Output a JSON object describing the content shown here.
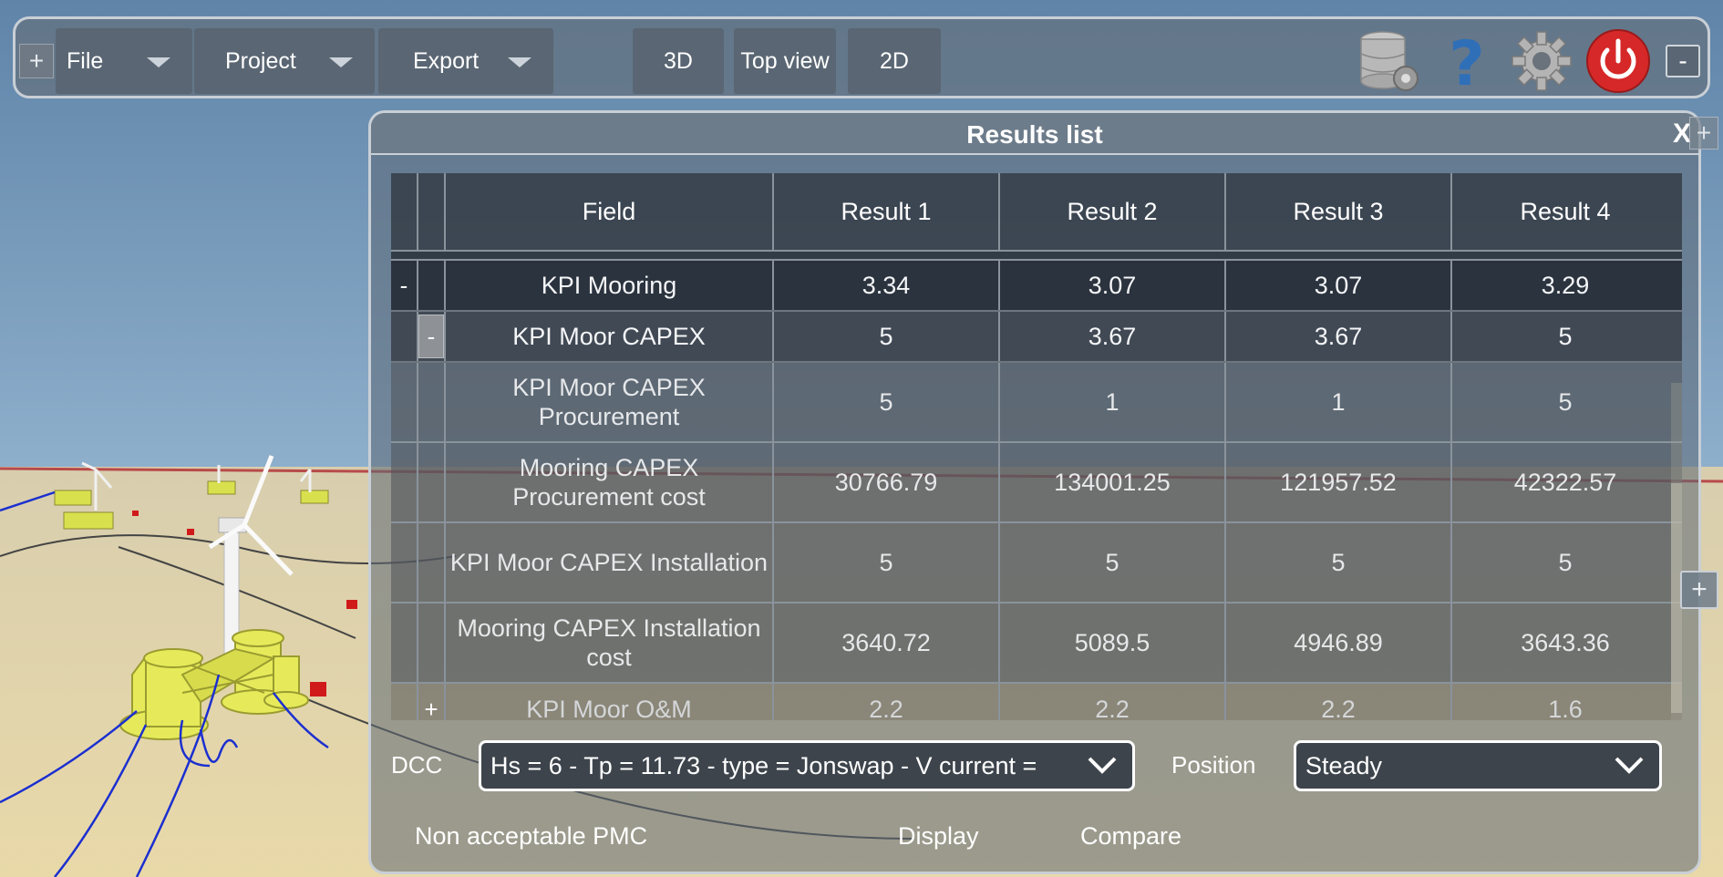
{
  "toolbar": {
    "menus": [
      {
        "label": "File"
      },
      {
        "label": "Project"
      },
      {
        "label": "Export"
      }
    ],
    "views": [
      {
        "label": "3D"
      },
      {
        "label": "Top view"
      },
      {
        "label": "2D"
      }
    ],
    "expand_symbol": "+",
    "collapse_symbol": "-"
  },
  "panel": {
    "title": "Results list",
    "close_label": "X",
    "corner_symbol": "+",
    "side_symbol": "+"
  },
  "table": {
    "columns": [
      "Field",
      "Result 1",
      "Result 2",
      "Result 3",
      "Result 4"
    ],
    "rows": [
      {
        "toggle": "-",
        "field": "KPI Mooring",
        "values": [
          "3.34",
          "3.07",
          "3.07",
          "3.29"
        ]
      },
      {
        "toggle": "-",
        "field": "KPI Moor CAPEX",
        "values": [
          "5",
          "3.67",
          "3.67",
          "5"
        ]
      },
      {
        "toggle": "",
        "field": "KPI Moor CAPEX Procurement",
        "values": [
          "5",
          "1",
          "1",
          "5"
        ]
      },
      {
        "toggle": "",
        "field": "Mooring CAPEX Procurement cost",
        "values": [
          "30766.79",
          "134001.25",
          "121957.52",
          "42322.57"
        ]
      },
      {
        "toggle": "",
        "field": "KPI Moor CAPEX Installation",
        "values": [
          "5",
          "5",
          "5",
          "5"
        ]
      },
      {
        "toggle": "",
        "field": "Mooring CAPEX Installation cost",
        "values": [
          "3640.72",
          "5089.5",
          "4946.89",
          "3643.36"
        ]
      },
      {
        "toggle": "+",
        "field": "KPI Moor O&M",
        "values": [
          "2.2",
          "2.2",
          "2.2",
          "1.6"
        ]
      }
    ]
  },
  "controls": {
    "dcc_label": "DCC",
    "dcc_value": "Hs = 6 - Tp = 11.73 - type = Jonswap - V current = ",
    "position_label": "Position",
    "position_value": "Steady",
    "non_acceptable": "Non acceptable PMC",
    "display": "Display",
    "compare": "Compare"
  },
  "colors": {
    "power_button": "#d62828",
    "help_icon": "#2f6fb8",
    "float_yellow": "#e6ea5a",
    "mooring_line": "#1b2fd0"
  },
  "icons": [
    "database-gear-icon",
    "help-icon",
    "settings-gear-icon",
    "power-icon",
    "chevron-down-icon"
  ]
}
